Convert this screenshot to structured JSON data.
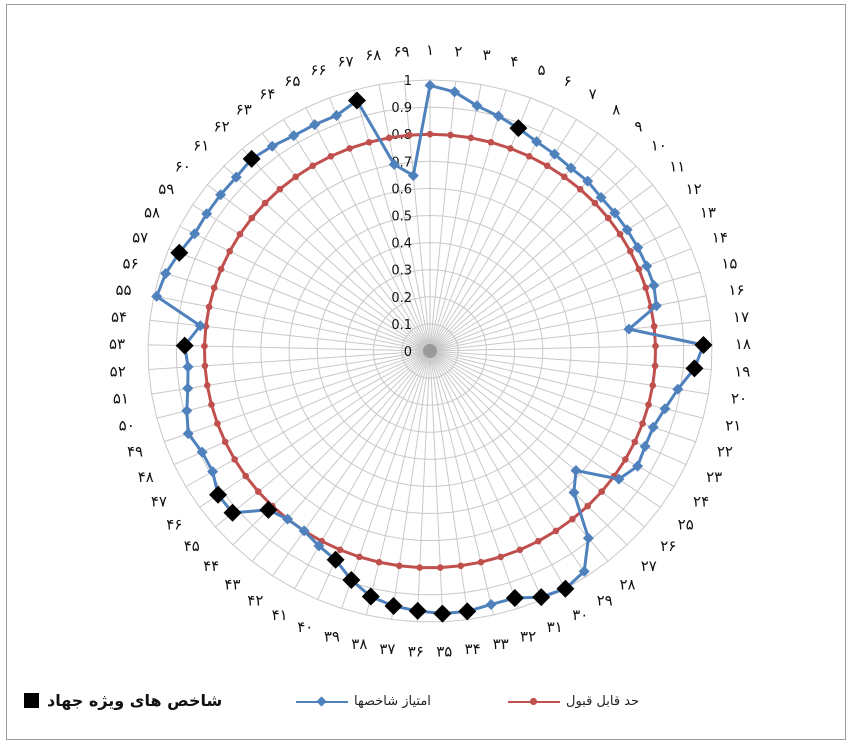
{
  "chart_data": {
    "type": "radar",
    "categories": [
      "1",
      "2",
      "3",
      "4",
      "5",
      "6",
      "7",
      "8",
      "9",
      "10",
      "11",
      "12",
      "13",
      "14",
      "15",
      "16",
      "17",
      "18",
      "19",
      "20",
      "21",
      "22",
      "23",
      "24",
      "25",
      "26",
      "27",
      "28",
      "29",
      "30",
      "31",
      "32",
      "33",
      "34",
      "35",
      "36",
      "37",
      "38",
      "39",
      "40",
      "41",
      "42",
      "43",
      "44",
      "45",
      "46",
      "47",
      "48",
      "49",
      "50",
      "51",
      "52",
      "53",
      "54",
      "55",
      "56",
      "57",
      "58",
      "59",
      "60",
      "61",
      "62",
      "63",
      "64",
      "65",
      "66",
      "67",
      "68",
      "69"
    ],
    "category_labels": [
      "۱",
      "۲",
      "۳",
      "۴",
      "۵",
      "۶",
      "۷",
      "۸",
      "۹",
      "۱۰",
      "۱۱",
      "۱۲",
      "۱۳",
      "۱۴",
      "۱۵",
      "۱۶",
      "۱۷",
      "۱۸",
      "۱۹",
      "۲۰",
      "۲۱",
      "۲۲",
      "۲۳",
      "۲۴",
      "۲۵",
      "۲۶",
      "۲۷",
      "۲۸",
      "۲۹",
      "۳۰",
      "۳۱",
      "۳۲",
      "۳۳",
      "۳۴",
      "۳۵",
      "۳۶",
      "۳۷",
      "۳۸",
      "۳۹",
      "۴۰",
      "۴۱",
      "۴۲",
      "۴۳",
      "۴۴",
      "۴۵",
      "۴۶",
      "۴۷",
      "۴۸",
      "۴۹",
      "۵۰",
      "۵۱",
      "۵۲",
      "۵۳",
      "۵۴",
      "۵۵",
      "۵۶",
      "۵۷",
      "۵۸",
      "۵۹",
      "۶۰",
      "۶۱",
      "۶۲",
      "۶۳",
      "۶۴",
      "۶۵",
      "۶۶",
      "۶۷",
      "۶۸",
      "۶۹"
    ],
    "radial_ticks": [
      "0",
      "0.1",
      "0.2",
      "0.3",
      "0.4",
      "0.5",
      "0.6",
      "0.7",
      "0.8",
      "0.9",
      "1"
    ],
    "rlim": [
      0,
      1
    ],
    "grid": true,
    "series": [
      {
        "name": "امتیاز شاخصها",
        "color": "#4f81bd",
        "marker": "diamond",
        "values": [
          0.98,
          0.96,
          0.92,
          0.9,
          0.88,
          0.86,
          0.85,
          0.84,
          0.84,
          0.83,
          0.83,
          0.83,
          0.83,
          0.83,
          0.83,
          0.82,
          0.71,
          0.97,
          0.94,
          0.89,
          0.86,
          0.84,
          0.84,
          0.85,
          0.82,
          0.68,
          0.73,
          0.89,
          0.98,
          1.0,
          0.99,
          0.96,
          0.96,
          0.97,
          0.97,
          0.96,
          0.95,
          0.93,
          0.89,
          0.84,
          0.82,
          0.8,
          0.8,
          0.82,
          0.92,
          0.92,
          0.89,
          0.89,
          0.91,
          0.89,
          0.87,
          0.86,
          0.87,
          0.82,
          0.99,
          0.98,
          0.96,
          0.94,
          0.94,
          0.94,
          0.94,
          0.95,
          0.94,
          0.93,
          0.93,
          0.93,
          0.96,
          0.7,
          0.65
        ]
      },
      {
        "name": "حد قابل قبول",
        "color": "#c0504d",
        "marker": "circle",
        "values": [
          0.8,
          0.8,
          0.8,
          0.8,
          0.8,
          0.8,
          0.8,
          0.8,
          0.8,
          0.8,
          0.8,
          0.8,
          0.8,
          0.8,
          0.8,
          0.8,
          0.8,
          0.8,
          0.8,
          0.8,
          0.8,
          0.8,
          0.8,
          0.8,
          0.8,
          0.8,
          0.8,
          0.8,
          0.8,
          0.8,
          0.8,
          0.8,
          0.8,
          0.8,
          0.8,
          0.8,
          0.8,
          0.8,
          0.8,
          0.8,
          0.8,
          0.8,
          0.8,
          0.8,
          0.8,
          0.8,
          0.8,
          0.8,
          0.8,
          0.8,
          0.8,
          0.8,
          0.8,
          0.8,
          0.8,
          0.8,
          0.8,
          0.8,
          0.8,
          0.8,
          0.8,
          0.8,
          0.8,
          0.8,
          0.8,
          0.8,
          0.8,
          0.8,
          0.8
        ]
      }
    ],
    "highlighted": {
      "name": "شاخص های ویژه جهاد",
      "color": "#000000",
      "marker": "square",
      "indices": [
        5,
        18,
        19,
        30,
        31,
        32,
        34,
        35,
        36,
        37,
        38,
        39,
        40,
        44,
        45,
        46,
        53,
        57,
        62,
        67
      ]
    }
  }
}
